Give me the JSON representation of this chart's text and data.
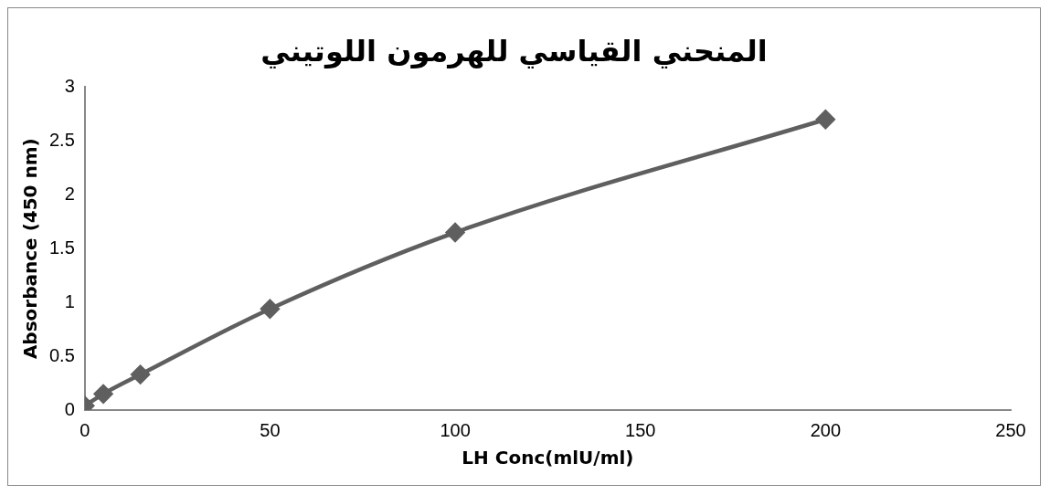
{
  "chart_data": {
    "type": "line",
    "title": "المنحني القياسي للهرمون اللوتيني",
    "xlabel": "LH Conc(mlU/ml)",
    "ylabel": "Absorbance (450 nm)",
    "x": [
      0,
      5,
      15,
      50,
      100,
      200
    ],
    "series": [
      {
        "color": "#5f5f5f",
        "values": [
          0.04,
          0.15,
          0.33,
          0.94,
          1.65,
          2.7
        ]
      }
    ],
    "xlim": [
      0,
      250
    ],
    "xticks": [
      0,
      50,
      100,
      150,
      200,
      250
    ],
    "ylim": [
      0,
      3
    ],
    "yticks": [
      0,
      0.5,
      1,
      1.5,
      2,
      2.5,
      3
    ],
    "grid": false,
    "legend": false,
    "marker": "diamond",
    "line_style": "solid"
  }
}
